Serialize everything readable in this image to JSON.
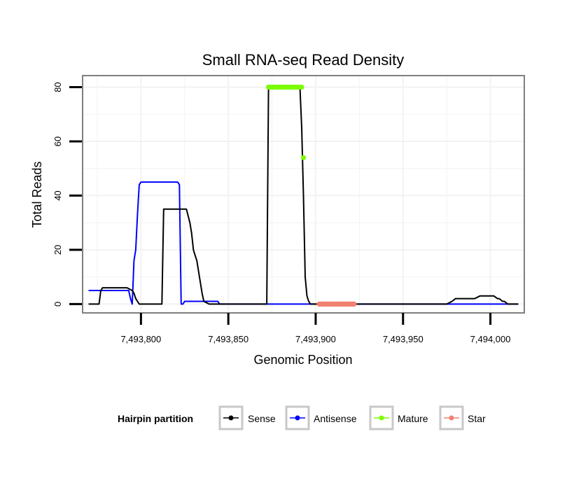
{
  "chart_data": {
    "type": "line",
    "title": "Small RNA-seq Read Density",
    "xlabel": "Genomic Position",
    "ylabel": "Total Reads",
    "xlim": [
      7493767,
      7494019
    ],
    "ylim": [
      -3,
      84
    ],
    "x_ticks": [
      7493800,
      7493850,
      7493900,
      7493950,
      7494000
    ],
    "x_tick_labels": [
      "7,493,800",
      "7,493,850",
      "7,493,900",
      "7,493,950",
      "7,494,000"
    ],
    "y_ticks": [
      0,
      20,
      40,
      60,
      80
    ],
    "y_tick_labels": [
      "0",
      "20",
      "40",
      "60",
      "80"
    ],
    "grid": true,
    "legend": {
      "title": "Hairpin partition",
      "placement": "bottom",
      "entries": [
        {
          "label": "Sense",
          "color": "#000000"
        },
        {
          "label": "Antisense",
          "color": "#0000ff"
        },
        {
          "label": "Mature",
          "color": "#7cfc00"
        },
        {
          "label": "Star",
          "color": "#f08070"
        }
      ]
    },
    "series": [
      {
        "name": "Sense",
        "color": "#000000",
        "kind": "line",
        "x": [
          7493770,
          7493776,
          7493777,
          7493778,
          7493792,
          7493795,
          7493796,
          7493797,
          7493798,
          7493799,
          7493800,
          7493812,
          7493813,
          7493814,
          7493826,
          7493828,
          7493829,
          7493830,
          7493831,
          7493832,
          7493833,
          7493834,
          7493835,
          7493836,
          7493839,
          7493872,
          7493873,
          7493891,
          7493892,
          7493893,
          7493894,
          7493895,
          7493896,
          7493897,
          7493975,
          7493978,
          7493980,
          7493991,
          7493994,
          7494002,
          7494004,
          7494005,
          7494007,
          7494008,
          7494010,
          7494011,
          7494016
        ],
        "y": [
          0,
          0,
          5,
          6,
          6,
          5,
          4,
          2,
          1,
          0,
          0,
          0,
          35,
          35,
          35,
          30,
          26,
          20,
          18,
          16,
          12,
          8,
          4,
          1,
          0,
          0,
          80,
          80,
          65,
          40,
          10,
          3,
          1,
          0,
          0,
          1,
          2,
          2,
          3,
          3,
          2,
          2,
          1,
          1,
          0,
          0,
          0
        ]
      },
      {
        "name": "Antisense",
        "color": "#0000ff",
        "kind": "line",
        "x": [
          7493770,
          7493793,
          7493794,
          7493795,
          7493796,
          7493797,
          7493798,
          7493799,
          7493800,
          7493821,
          7493822,
          7493823,
          7493824,
          7493825,
          7493844,
          7493845,
          7494016
        ],
        "y": [
          5,
          5,
          2,
          0,
          16,
          20,
          33,
          44,
          45,
          45,
          44,
          0,
          0,
          1,
          1,
          0,
          0
        ]
      },
      {
        "name": "Mature",
        "color": "#7cfc00",
        "kind": "points",
        "x": [
          7493873,
          7493874,
          7493875,
          7493876,
          7493877,
          7493878,
          7493879,
          7493880,
          7493881,
          7493882,
          7493883,
          7493884,
          7493885,
          7493886,
          7493887,
          7493888,
          7493889,
          7493890,
          7493891,
          7493892,
          7493893
        ],
        "y": [
          80,
          80,
          80,
          80,
          80,
          80,
          80,
          80,
          80,
          80,
          80,
          80,
          80,
          80,
          80,
          80,
          80,
          80,
          80,
          80,
          54
        ]
      },
      {
        "name": "Star",
        "color": "#f08070",
        "kind": "points",
        "x": [
          7493902,
          7493903,
          7493904,
          7493905,
          7493906,
          7493907,
          7493908,
          7493909,
          7493910,
          7493911,
          7493912,
          7493913,
          7493914,
          7493915,
          7493916,
          7493917,
          7493918,
          7493919,
          7493920,
          7493921,
          7493922
        ],
        "y": [
          0,
          0,
          0,
          0,
          0,
          0,
          0,
          0,
          0,
          0,
          0,
          0,
          0,
          0,
          0,
          0,
          0,
          0,
          0,
          0,
          0
        ]
      }
    ]
  }
}
